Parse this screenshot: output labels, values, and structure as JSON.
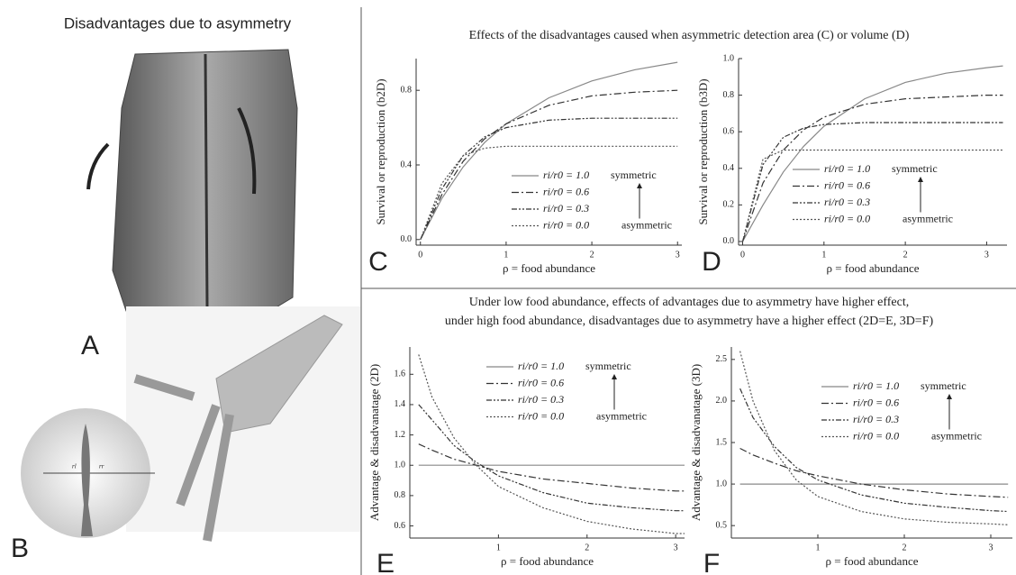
{
  "left_title": "Disadvantages due to asymmetry",
  "panel_a": "A",
  "panel_b": "B",
  "figure_b_labels": [
    "rl",
    "rr"
  ],
  "headings": [
    "Effects of the disadvantages caused when asymmetric detection area (C) or volume (D)",
    "Under low food abundance, effects of advantages due to asymmetry have higher effect,",
    "under high food abundance, disadvantages due to asymmetry have a higher effect (2D=E, 3D=F)"
  ],
  "chart_data": [
    {
      "type": "line",
      "panel": "C",
      "xlabel": "ρ = food abundance",
      "ylabel": "Survival or reproduction (b2D)",
      "x": [
        0,
        0.25,
        0.5,
        0.75,
        1,
        1.5,
        2,
        2.5,
        3
      ],
      "xlim": [
        -0.05,
        3.05
      ],
      "xticks": [
        0,
        1,
        2,
        3
      ],
      "ylim": [
        -0.03,
        0.97
      ],
      "yticks": [
        {
          "value": 0,
          "label": "0.0"
        },
        0.4,
        0.8
      ],
      "annotations": [
        "symmetric",
        "asymmetric"
      ],
      "series": [
        {
          "name": "ri/r0 = 1.0",
          "color": "#888888",
          "dash": "none",
          "values": [
            0,
            0.22,
            0.39,
            0.52,
            0.62,
            0.76,
            0.85,
            0.91,
            0.95
          ]
        },
        {
          "name": "ri/r0 = 0.6",
          "color": "#333333",
          "dash": "8 3 2 3",
          "values": [
            0,
            0.24,
            0.42,
            0.54,
            0.62,
            0.72,
            0.77,
            0.79,
            0.8
          ]
        },
        {
          "name": "ri/r0 = 0.3",
          "color": "#333333",
          "dash": "6 2 2 2 2 2",
          "values": [
            0,
            0.27,
            0.45,
            0.55,
            0.6,
            0.64,
            0.65,
            0.65,
            0.65
          ]
        },
        {
          "name": "ri/r0 = 0.0",
          "color": "#555555",
          "dash": "2 2",
          "values": [
            0,
            0.3,
            0.45,
            0.49,
            0.5,
            0.5,
            0.5,
            0.5,
            0.5
          ]
        }
      ]
    },
    {
      "type": "line",
      "panel": "D",
      "xlabel": "ρ = food abundance",
      "ylabel": "Survival or reproduction (b3D)",
      "x": [
        0,
        0.25,
        0.5,
        0.75,
        1,
        1.5,
        2,
        2.5,
        3,
        3.2
      ],
      "xlim": [
        -0.05,
        3.25
      ],
      "xticks": [
        0,
        1,
        2,
        3
      ],
      "ylim": [
        -0.02,
        1.0
      ],
      "yticks": [
        {
          "value": 0,
          "label": "0.0"
        },
        0.2,
        0.4,
        0.6,
        0.8,
        {
          "value": 1,
          "label": "1.0"
        }
      ],
      "annotations": [
        "symmetric",
        "asymmetric"
      ],
      "series": [
        {
          "name": "ri/r0 = 1.0",
          "color": "#888888",
          "dash": "none",
          "values": [
            0,
            0.2,
            0.38,
            0.52,
            0.63,
            0.78,
            0.87,
            0.92,
            0.95,
            0.96
          ]
        },
        {
          "name": "ri/r0 = 0.6",
          "color": "#333333",
          "dash": "8 3 2 3",
          "values": [
            0,
            0.32,
            0.5,
            0.61,
            0.68,
            0.75,
            0.78,
            0.79,
            0.8,
            0.8
          ]
        },
        {
          "name": "ri/r0 = 0.3",
          "color": "#333333",
          "dash": "6 2 2 2 2 2",
          "values": [
            0,
            0.42,
            0.57,
            0.62,
            0.64,
            0.65,
            0.65,
            0.65,
            0.65,
            0.65
          ]
        },
        {
          "name": "ri/r0 = 0.0",
          "color": "#555555",
          "dash": "2 2",
          "values": [
            0,
            0.45,
            0.5,
            0.5,
            0.5,
            0.5,
            0.5,
            0.5,
            0.5,
            0.5
          ]
        }
      ]
    },
    {
      "type": "line",
      "panel": "E",
      "xlabel": "ρ = food abundance",
      "ylabel": "Advantage & disadvanatage (2D)",
      "x": [
        0.1,
        0.25,
        0.5,
        0.75,
        1,
        1.5,
        2,
        2.5,
        3,
        3.1
      ],
      "xlim": [
        0,
        3.1
      ],
      "xticks": [
        1,
        2,
        3
      ],
      "ylim": [
        0.52,
        1.78
      ],
      "yticks": [
        0.6,
        0.8,
        {
          "value": 1,
          "label": "1.0"
        },
        1.2,
        1.4,
        1.6
      ],
      "annotations": [
        "symmetric",
        "asymmetric"
      ],
      "series": [
        {
          "name": "ri/r0 = 1.0",
          "color": "#888888",
          "dash": "none",
          "values": [
            1,
            1,
            1,
            1,
            1,
            1,
            1,
            1,
            1,
            1
          ]
        },
        {
          "name": "ri/r0 = 0.6",
          "color": "#333333",
          "dash": "8 3 2 3",
          "values": [
            1.14,
            1.1,
            1.04,
            1.0,
            0.96,
            0.91,
            0.88,
            0.85,
            0.83,
            0.83
          ]
        },
        {
          "name": "ri/r0 = 0.3",
          "color": "#333333",
          "dash": "6 2 2 2 2 2",
          "values": [
            1.4,
            1.3,
            1.13,
            1.02,
            0.93,
            0.82,
            0.75,
            0.72,
            0.7,
            0.7
          ]
        },
        {
          "name": "ri/r0 = 0.0",
          "color": "#555555",
          "dash": "2 2",
          "values": [
            1.73,
            1.45,
            1.18,
            1.0,
            0.86,
            0.72,
            0.63,
            0.58,
            0.55,
            0.55
          ]
        }
      ]
    },
    {
      "type": "line",
      "panel": "F",
      "xlabel": "ρ = food abundance",
      "ylabel": "Advantage & disadvanatage (3D)",
      "x": [
        0.1,
        0.25,
        0.5,
        0.75,
        1,
        1.5,
        2,
        2.5,
        3,
        3.2
      ],
      "xlim": [
        0,
        3.25
      ],
      "xticks": [
        1,
        2,
        3
      ],
      "ylim": [
        0.35,
        2.65
      ],
      "yticks": [
        0.5,
        {
          "value": 1,
          "label": "1.0"
        },
        1.5,
        {
          "value": 2,
          "label": "2.0"
        },
        2.5
      ],
      "annotations": [
        "symmetric",
        "asymmetric"
      ],
      "series": [
        {
          "name": "ri/r0 = 1.0",
          "color": "#888888",
          "dash": "none",
          "values": [
            1,
            1,
            1,
            1,
            1,
            1,
            1,
            1,
            1,
            1
          ]
        },
        {
          "name": "ri/r0 = 0.6",
          "color": "#333333",
          "dash": "8 3 2 3",
          "values": [
            1.43,
            1.35,
            1.25,
            1.16,
            1.1,
            1.0,
            0.93,
            0.88,
            0.85,
            0.84
          ]
        },
        {
          "name": "ri/r0 = 0.3",
          "color": "#333333",
          "dash": "6 2 2 2 2 2",
          "values": [
            2.15,
            1.8,
            1.45,
            1.2,
            1.05,
            0.87,
            0.77,
            0.72,
            0.68,
            0.67
          ]
        },
        {
          "name": "ri/r0 = 0.0",
          "color": "#555555",
          "dash": "2 2",
          "values": [
            2.6,
            2.0,
            1.4,
            1.05,
            0.85,
            0.67,
            0.58,
            0.54,
            0.52,
            0.51
          ]
        }
      ]
    }
  ]
}
